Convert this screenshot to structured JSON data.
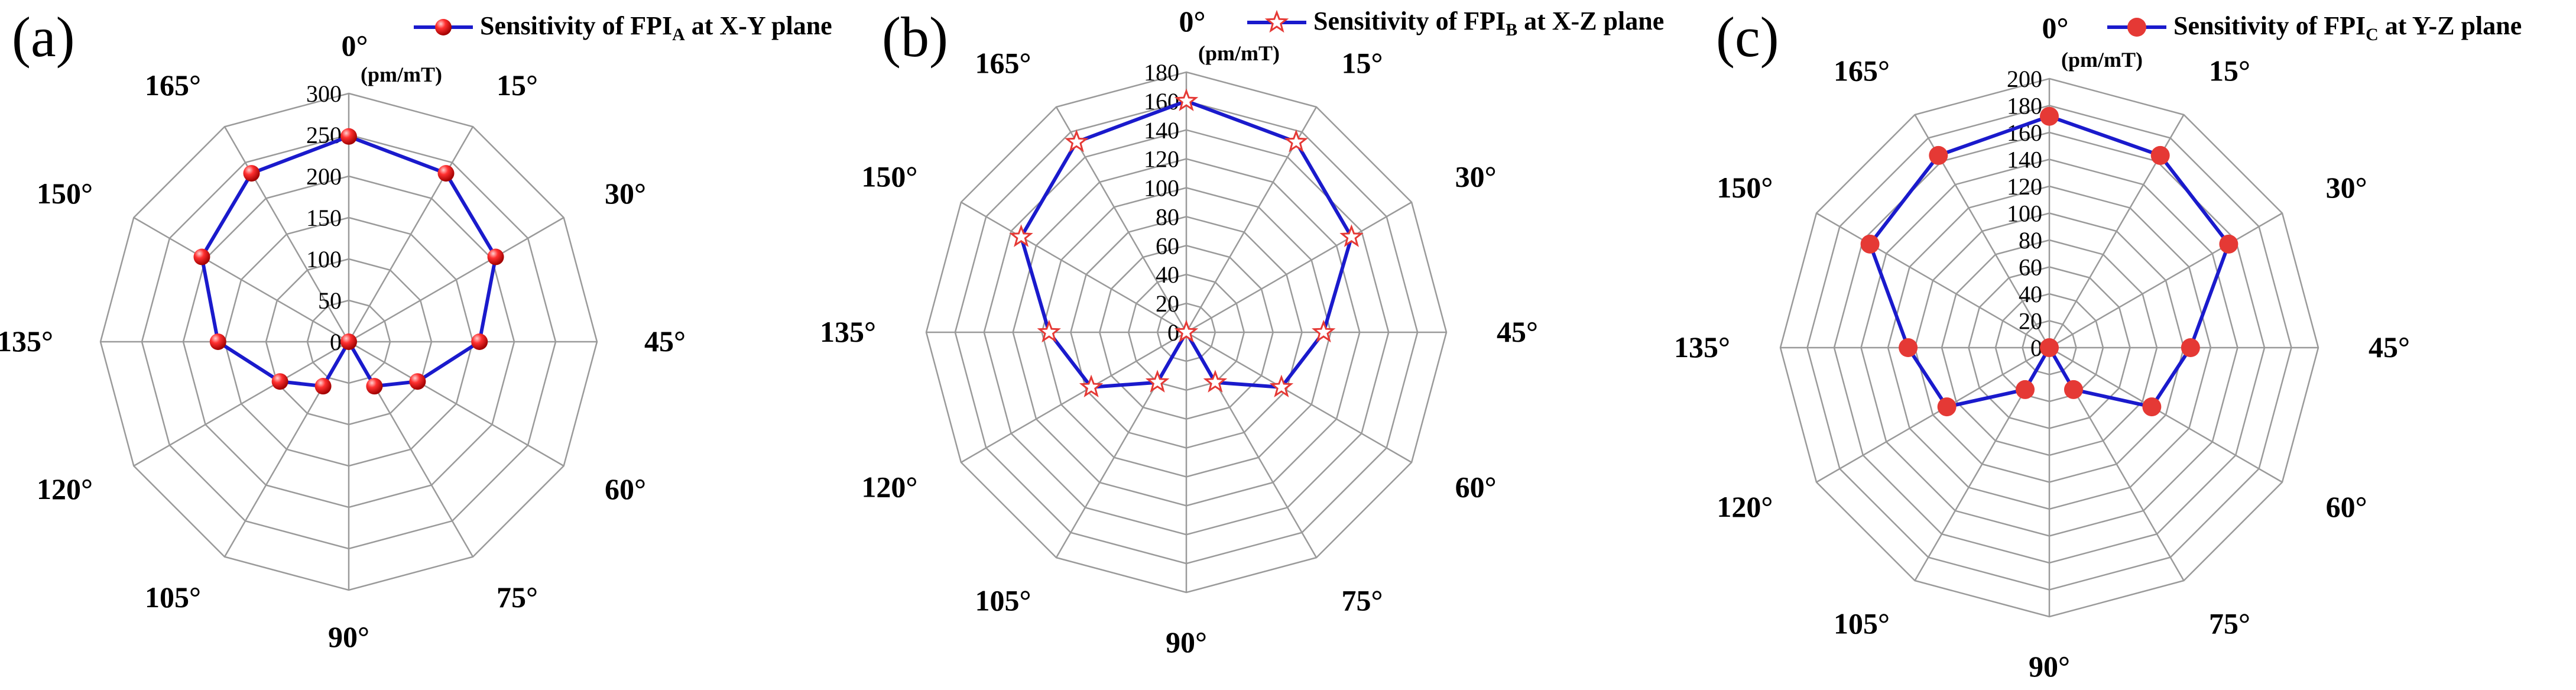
{
  "chart_data": [
    {
      "type": "radar",
      "panel_label": "(a)",
      "unit": "(pm/mT)",
      "angles": [
        "0°",
        "15°",
        "30°",
        "45°",
        "60°",
        "75°",
        "90°",
        "105°",
        "120°",
        "135°",
        "150°",
        "165°"
      ],
      "ticks": [
        0,
        50,
        100,
        150,
        200,
        250,
        300
      ],
      "rmax": 300,
      "marker": "sphere",
      "legend": {
        "prefix": "Sensitivity of FPI",
        "sub": "A",
        "suffix": " at X-Y plane"
      },
      "series": [
        {
          "values": [
            248,
            235,
            205,
            158,
            96,
            62,
            0,
            62,
            96,
            158,
            205,
            235
          ]
        }
      ]
    },
    {
      "type": "radar",
      "panel_label": "(b)",
      "unit": "(pm/mT)",
      "angles": [
        "0°",
        "15°",
        "30°",
        "45°",
        "60°",
        "75°",
        "90°",
        "105°",
        "120°",
        "135°",
        "150°",
        "165°"
      ],
      "ticks": [
        0,
        20,
        40,
        60,
        80,
        100,
        120,
        140,
        160,
        180
      ],
      "rmax": 180,
      "marker": "star",
      "legend": {
        "prefix": "Sensitivity of FPI",
        "sub": "B",
        "suffix": " at X-Z plane"
      },
      "series": [
        {
          "values": [
            160,
            152,
            132,
            95,
            76,
            40,
            0,
            40,
            76,
            95,
            132,
            152
          ]
        }
      ]
    },
    {
      "type": "radar",
      "panel_label": "(c)",
      "unit": "(pm/mT)",
      "angles": [
        "0°",
        "15°",
        "30°",
        "45°",
        "60°",
        "75°",
        "90°",
        "105°",
        "120°",
        "135°",
        "150°",
        "165°"
      ],
      "ticks": [
        0,
        20,
        40,
        60,
        80,
        100,
        120,
        140,
        160,
        180,
        200
      ],
      "rmax": 200,
      "marker": "dot",
      "legend": {
        "prefix": "Sensitivity of FPI",
        "sub": "C",
        "suffix": " at Y-Z plane"
      },
      "series": [
        {
          "values": [
            172,
            165,
            154,
            105,
            88,
            36,
            0,
            36,
            88,
            105,
            154,
            165
          ]
        }
      ]
    }
  ],
  "colors": {
    "line": "#1a1acc",
    "dot": "#e53935",
    "star_stroke": "#e53935",
    "grid": "#9a9a9a"
  }
}
